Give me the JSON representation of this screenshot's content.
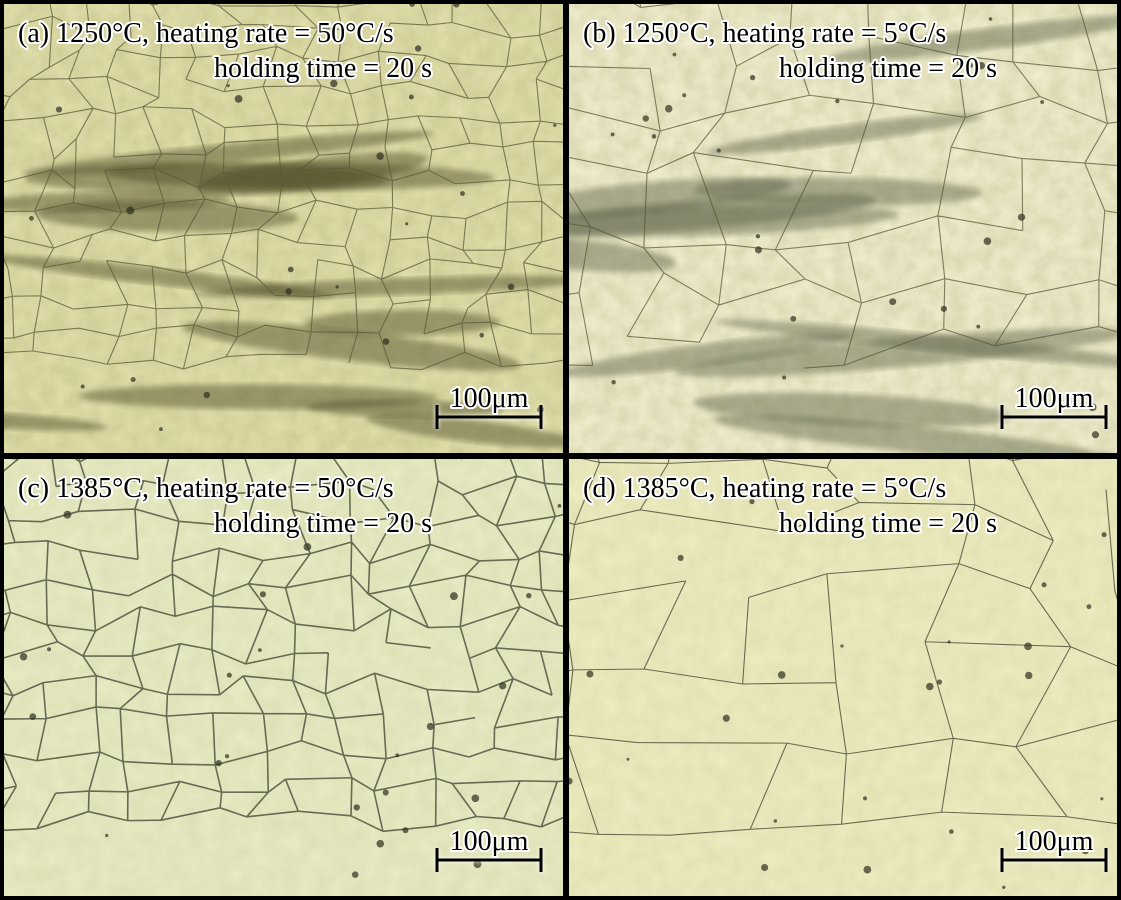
{
  "panels": [
    {
      "label": "(a) 1250°C, heating rate = 50°C/s",
      "note": "holding time = 20 s",
      "scale_bar": "100μm"
    },
    {
      "label": "(b) 1250°C, heating rate = 5°C/s",
      "note": "holding time = 20 s",
      "scale_bar": "100μm"
    },
    {
      "label": "(c) 1385°C, heating rate = 50°C/s",
      "note": "holding time = 20 s",
      "scale_bar": "100μm"
    },
    {
      "label": "(d) 1385°C, heating rate = 5°C/s",
      "note": "holding time = 20 s",
      "scale_bar": "100μm"
    }
  ]
}
